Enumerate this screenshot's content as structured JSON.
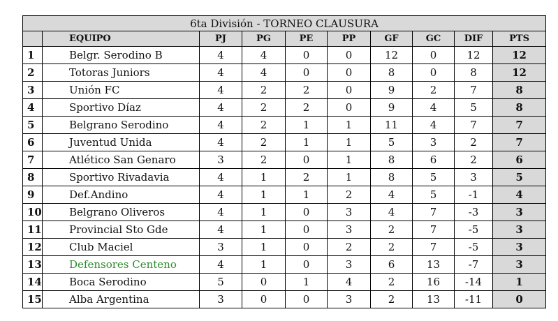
{
  "table": {
    "title": "6ta División - TORNEO CLAUSURA",
    "header": [
      "EQUIPO",
      "PJ",
      "PG",
      "PE",
      "PP",
      "GF",
      "GC",
      "DIF",
      "PTS"
    ],
    "rows": [
      [
        1,
        "Belgr. Serodino B",
        4,
        4,
        0,
        0,
        12,
        0,
        12,
        12
      ],
      [
        2,
        "Totoras Juniors",
        4,
        4,
        0,
        0,
        8,
        0,
        8,
        12
      ],
      [
        3,
        "Unión FC",
        4,
        2,
        2,
        0,
        9,
        2,
        7,
        8
      ],
      [
        4,
        "Sportivo Díaz",
        4,
        2,
        2,
        0,
        9,
        4,
        5,
        8
      ],
      [
        5,
        "Belgrano Serodino",
        4,
        2,
        1,
        1,
        11,
        4,
        7,
        7
      ],
      [
        6,
        "Juventud Unida",
        4,
        2,
        1,
        1,
        5,
        3,
        2,
        7
      ],
      [
        7,
        "Atlético San Genaro",
        3,
        2,
        0,
        1,
        8,
        6,
        2,
        6
      ],
      [
        8,
        "Sportivo Rivadavia",
        4,
        1,
        2,
        1,
        8,
        5,
        3,
        5
      ],
      [
        9,
        "Def.Andino",
        4,
        1,
        1,
        2,
        4,
        5,
        -1,
        4
      ],
      [
        10,
        "Belgrano Oliveros",
        4,
        1,
        0,
        3,
        4,
        7,
        -3,
        3
      ],
      [
        11,
        "Provincial Sto Gde",
        4,
        1,
        0,
        3,
        2,
        7,
        -5,
        3
      ],
      [
        12,
        "Club Maciel",
        3,
        1,
        0,
        2,
        2,
        7,
        -5,
        3
      ],
      [
        13,
        "Defensores Centeno",
        4,
        1,
        0,
        3,
        6,
        13,
        -7,
        3
      ],
      [
        14,
        "Boca Serodino",
        5,
        0,
        1,
        4,
        2,
        16,
        -14,
        1
      ],
      [
        15,
        "Alba Argentina",
        3,
        0,
        0,
        3,
        2,
        13,
        -11,
        0
      ]
    ]
  }
}
